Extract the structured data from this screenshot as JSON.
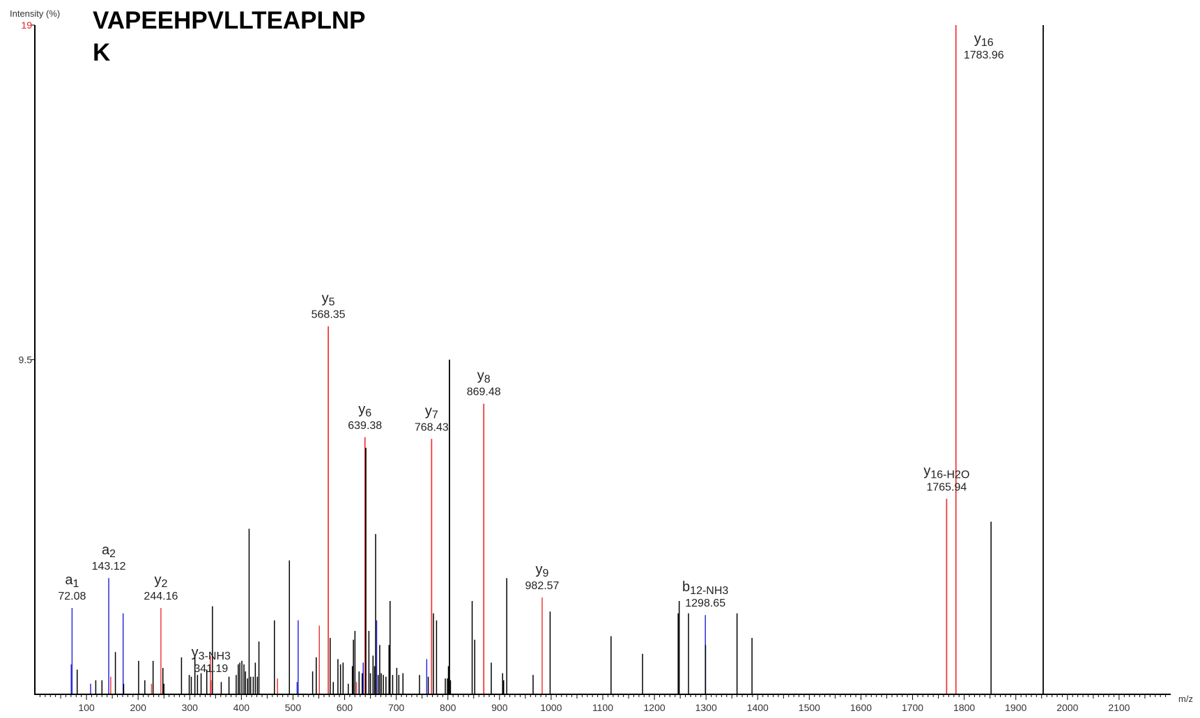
{
  "peptide": {
    "line1": "VAPEEHPVLLTEAPLNP",
    "line2": "K"
  },
  "chart_data": {
    "type": "bar",
    "ylabel": "Intensity (%)",
    "xlabel": "m/z",
    "xlim": [
      0,
      2200
    ],
    "ylim": [
      0,
      19
    ],
    "x_ticks": [
      100,
      200,
      300,
      400,
      500,
      600,
      700,
      800,
      900,
      1000,
      1100,
      1200,
      1300,
      1400,
      1500,
      1600,
      1700,
      1800,
      1900,
      2000,
      2100
    ],
    "y_ticks": [
      {
        "value": 9.5,
        "label": "9.5",
        "color": "#333333"
      },
      {
        "value": 19,
        "label": "19",
        "color": "#e02020"
      }
    ],
    "grid": false,
    "colors": {
      "y": "#f03a3a",
      "b": "#2b2bd8",
      "unassigned": "#000000",
      "axis": "#000000"
    },
    "annotations": [
      {
        "x": 72.08,
        "ion": "a",
        "sub": "1",
        "mass": "72.08"
      },
      {
        "x": 143.12,
        "ion": "a",
        "sub": "2",
        "mass": "143.12"
      },
      {
        "x": 244.16,
        "ion": "y",
        "sub": "2",
        "mass": "244.16"
      },
      {
        "x": 341.19,
        "ion": "y",
        "sub": "3-NH3",
        "mass": "341.19"
      },
      {
        "x": 568.35,
        "ion": "y",
        "sub": "5",
        "mass": "568.35"
      },
      {
        "x": 639.38,
        "ion": "y",
        "sub": "6",
        "mass": "639.38"
      },
      {
        "x": 768.43,
        "ion": "y",
        "sub": "7",
        "mass": "768.43"
      },
      {
        "x": 869.48,
        "ion": "y",
        "sub": "8",
        "mass": "869.48"
      },
      {
        "x": 982.57,
        "ion": "y",
        "sub": "9",
        "mass": "982.57"
      },
      {
        "x": 1298.65,
        "ion": "b",
        "sub": "12-NH3",
        "mass": "1298.65"
      },
      {
        "x": 1765.94,
        "ion": "y",
        "sub": "16-H2O",
        "mass": "1765.94"
      },
      {
        "x": 1783.96,
        "ion": "y",
        "sub": "16",
        "mass": "1783.96"
      }
    ],
    "peaks": [
      {
        "mz": 72.08,
        "y": 2.45,
        "type": "b"
      },
      {
        "mz": 70.5,
        "y": 0.85,
        "type": "b"
      },
      {
        "mz": 82,
        "y": 0.7,
        "type": "unassigned"
      },
      {
        "mz": 108,
        "y": 0.3,
        "type": "b"
      },
      {
        "mz": 118,
        "y": 0.4,
        "type": "unassigned"
      },
      {
        "mz": 130,
        "y": 0.4,
        "type": "unassigned"
      },
      {
        "mz": 143.12,
        "y": 3.3,
        "type": "b"
      },
      {
        "mz": 147,
        "y": 0.5,
        "type": "y"
      },
      {
        "mz": 156,
        "y": 1.2,
        "type": "unassigned"
      },
      {
        "mz": 171,
        "y": 2.3,
        "type": "b"
      },
      {
        "mz": 172,
        "y": 0.3,
        "type": "unassigned"
      },
      {
        "mz": 201,
        "y": 0.95,
        "type": "unassigned"
      },
      {
        "mz": 213,
        "y": 0.4,
        "type": "unassigned"
      },
      {
        "mz": 226,
        "y": 0.3,
        "type": "y"
      },
      {
        "mz": 229,
        "y": 0.95,
        "type": "unassigned"
      },
      {
        "mz": 244.16,
        "y": 2.45,
        "type": "y"
      },
      {
        "mz": 248,
        "y": 0.75,
        "type": "unassigned"
      },
      {
        "mz": 250,
        "y": 0.3,
        "type": "unassigned"
      },
      {
        "mz": 284,
        "y": 1.05,
        "type": "unassigned"
      },
      {
        "mz": 299,
        "y": 0.55,
        "type": "unassigned"
      },
      {
        "mz": 303,
        "y": 0.5,
        "type": "unassigned"
      },
      {
        "mz": 310,
        "y": 1.1,
        "type": "unassigned"
      },
      {
        "mz": 315,
        "y": 0.55,
        "type": "unassigned"
      },
      {
        "mz": 322,
        "y": 0.6,
        "type": "unassigned"
      },
      {
        "mz": 333,
        "y": 0.7,
        "type": "unassigned"
      },
      {
        "mz": 340,
        "y": 1.1,
        "type": "y"
      },
      {
        "mz": 341.19,
        "y": 0.4,
        "type": "y"
      },
      {
        "mz": 344,
        "y": 2.5,
        "type": "unassigned"
      },
      {
        "mz": 361,
        "y": 0.35,
        "type": "unassigned"
      },
      {
        "mz": 376,
        "y": 0.5,
        "type": "unassigned"
      },
      {
        "mz": 390,
        "y": 0.55,
        "type": "unassigned"
      },
      {
        "mz": 394,
        "y": 0.85,
        "type": "unassigned"
      },
      {
        "mz": 397,
        "y": 0.9,
        "type": "unassigned"
      },
      {
        "mz": 401,
        "y": 0.95,
        "type": "unassigned"
      },
      {
        "mz": 405,
        "y": 0.85,
        "type": "unassigned"
      },
      {
        "mz": 408,
        "y": 0.65,
        "type": "unassigned"
      },
      {
        "mz": 412,
        "y": 0.45,
        "type": "unassigned"
      },
      {
        "mz": 415,
        "y": 4.7,
        "type": "unassigned"
      },
      {
        "mz": 418,
        "y": 0.5,
        "type": "unassigned"
      },
      {
        "mz": 423,
        "y": 0.5,
        "type": "unassigned"
      },
      {
        "mz": 427,
        "y": 0.9,
        "type": "unassigned"
      },
      {
        "mz": 431,
        "y": 0.5,
        "type": "unassigned"
      },
      {
        "mz": 434,
        "y": 1.5,
        "type": "unassigned"
      },
      {
        "mz": 464,
        "y": 2.1,
        "type": "unassigned"
      },
      {
        "mz": 470,
        "y": 0.45,
        "type": "y"
      },
      {
        "mz": 493,
        "y": 3.8,
        "type": "unassigned"
      },
      {
        "mz": 508,
        "y": 0.35,
        "type": "b"
      },
      {
        "mz": 510,
        "y": 2.1,
        "type": "b"
      },
      {
        "mz": 538,
        "y": 0.65,
        "type": "unassigned"
      },
      {
        "mz": 545,
        "y": 1.05,
        "type": "unassigned"
      },
      {
        "mz": 551,
        "y": 1.95,
        "type": "y"
      },
      {
        "mz": 568.35,
        "y": 10.45,
        "type": "y"
      },
      {
        "mz": 572,
        "y": 1.6,
        "type": "unassigned"
      },
      {
        "mz": 578,
        "y": 0.35,
        "type": "unassigned"
      },
      {
        "mz": 587,
        "y": 1.0,
        "type": "unassigned"
      },
      {
        "mz": 592,
        "y": 0.85,
        "type": "unassigned"
      },
      {
        "mz": 597,
        "y": 0.9,
        "type": "unassigned"
      },
      {
        "mz": 607,
        "y": 0.3,
        "type": "unassigned"
      },
      {
        "mz": 615,
        "y": 0.8,
        "type": "unassigned"
      },
      {
        "mz": 617,
        "y": 1.55,
        "type": "unassigned"
      },
      {
        "mz": 620,
        "y": 1.8,
        "type": "unassigned"
      },
      {
        "mz": 623,
        "y": 0.35,
        "type": "y"
      },
      {
        "mz": 628,
        "y": 0.65,
        "type": "unassigned"
      },
      {
        "mz": 634,
        "y": 0.6,
        "type": "unassigned"
      },
      {
        "mz": 636,
        "y": 0.9,
        "type": "b"
      },
      {
        "mz": 639.38,
        "y": 7.3,
        "type": "y"
      },
      {
        "mz": 641,
        "y": 7.0,
        "type": "unassigned"
      },
      {
        "mz": 647,
        "y": 1.8,
        "type": "unassigned"
      },
      {
        "mz": 650,
        "y": 0.6,
        "type": "unassigned"
      },
      {
        "mz": 655,
        "y": 1.1,
        "type": "unassigned"
      },
      {
        "mz": 658,
        "y": 0.8,
        "type": "unassigned"
      },
      {
        "mz": 660,
        "y": 4.55,
        "type": "unassigned"
      },
      {
        "mz": 662,
        "y": 2.1,
        "type": "b"
      },
      {
        "mz": 665,
        "y": 0.55,
        "type": "unassigned"
      },
      {
        "mz": 668,
        "y": 1.4,
        "type": "unassigned"
      },
      {
        "mz": 671,
        "y": 0.6,
        "type": "unassigned"
      },
      {
        "mz": 675,
        "y": 0.55,
        "type": "unassigned"
      },
      {
        "mz": 680,
        "y": 0.5,
        "type": "unassigned"
      },
      {
        "mz": 686,
        "y": 1.4,
        "type": "unassigned"
      },
      {
        "mz": 688,
        "y": 2.65,
        "type": "unassigned"
      },
      {
        "mz": 693,
        "y": 0.55,
        "type": "unassigned"
      },
      {
        "mz": 701,
        "y": 0.75,
        "type": "unassigned"
      },
      {
        "mz": 705,
        "y": 0.55,
        "type": "unassigned"
      },
      {
        "mz": 713,
        "y": 0.6,
        "type": "unassigned"
      },
      {
        "mz": 745,
        "y": 0.55,
        "type": "unassigned"
      },
      {
        "mz": 759,
        "y": 1.0,
        "type": "b"
      },
      {
        "mz": 762,
        "y": 0.5,
        "type": "unassigned"
      },
      {
        "mz": 768.43,
        "y": 7.25,
        "type": "y"
      },
      {
        "mz": 772,
        "y": 2.3,
        "type": "unassigned"
      },
      {
        "mz": 778,
        "y": 2.1,
        "type": "unassigned"
      },
      {
        "mz": 795,
        "y": 0.45,
        "type": "unassigned"
      },
      {
        "mz": 799,
        "y": 0.45,
        "type": "unassigned"
      },
      {
        "mz": 801,
        "y": 0.8,
        "type": "unassigned"
      },
      {
        "mz": 803,
        "y": 9.5,
        "type": "unassigned"
      },
      {
        "mz": 805,
        "y": 0.4,
        "type": "unassigned"
      },
      {
        "mz": 847,
        "y": 2.65,
        "type": "unassigned"
      },
      {
        "mz": 852,
        "y": 1.55,
        "type": "unassigned"
      },
      {
        "mz": 869.48,
        "y": 8.25,
        "type": "y"
      },
      {
        "mz": 884,
        "y": 0.9,
        "type": "unassigned"
      },
      {
        "mz": 906,
        "y": 0.6,
        "type": "unassigned"
      },
      {
        "mz": 908,
        "y": 0.4,
        "type": "unassigned"
      },
      {
        "mz": 914,
        "y": 3.3,
        "type": "unassigned"
      },
      {
        "mz": 965,
        "y": 0.55,
        "type": "unassigned"
      },
      {
        "mz": 982.57,
        "y": 2.75,
        "type": "y"
      },
      {
        "mz": 998,
        "y": 2.35,
        "type": "unassigned"
      },
      {
        "mz": 1116,
        "y": 1.65,
        "type": "unassigned"
      },
      {
        "mz": 1177,
        "y": 1.15,
        "type": "unassigned"
      },
      {
        "mz": 1246,
        "y": 2.3,
        "type": "unassigned"
      },
      {
        "mz": 1248,
        "y": 2.65,
        "type": "unassigned"
      },
      {
        "mz": 1266,
        "y": 2.3,
        "type": "unassigned"
      },
      {
        "mz": 1298.65,
        "y": 2.25,
        "type": "b"
      },
      {
        "mz": 1299,
        "y": 1.4,
        "type": "unassigned"
      },
      {
        "mz": 1360,
        "y": 2.3,
        "type": "unassigned"
      },
      {
        "mz": 1389,
        "y": 1.6,
        "type": "unassigned"
      },
      {
        "mz": 1765.94,
        "y": 5.55,
        "type": "y"
      },
      {
        "mz": 1783.96,
        "y": 19,
        "type": "y"
      },
      {
        "mz": 1852,
        "y": 4.9,
        "type": "unassigned"
      },
      {
        "mz": 1953,
        "y": 19,
        "type": "unassigned"
      }
    ]
  }
}
